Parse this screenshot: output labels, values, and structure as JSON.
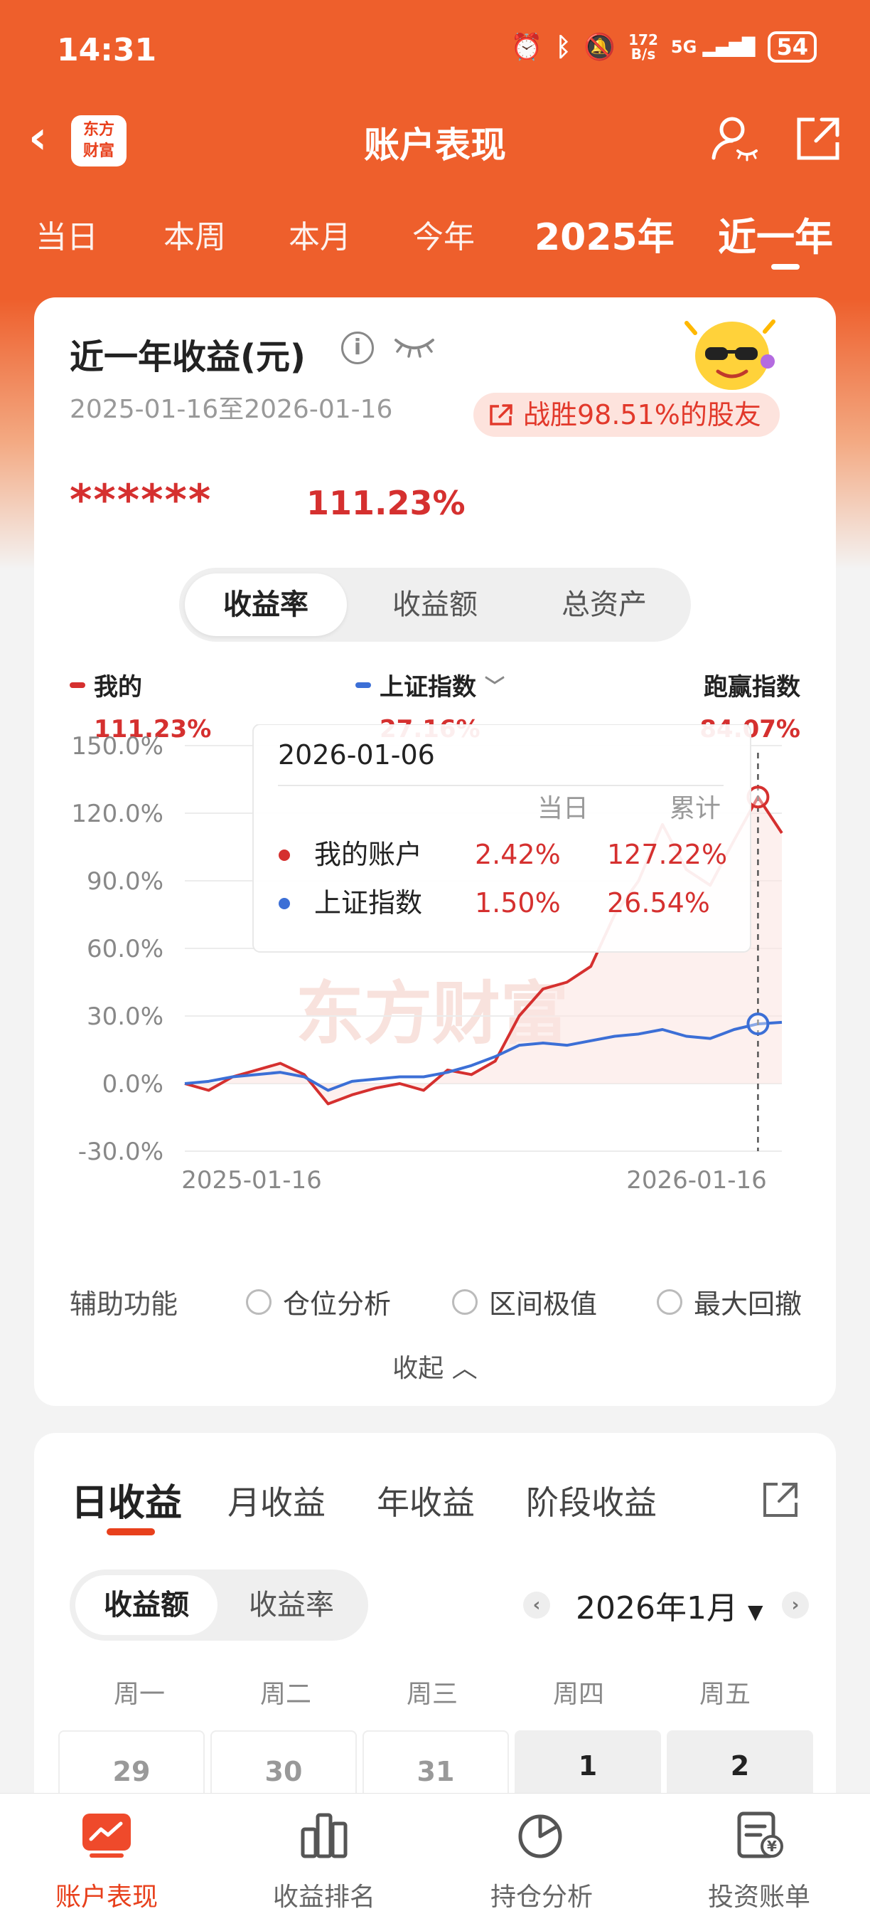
{
  "status_bar": {
    "time": "14:31",
    "net_speed_top": "172",
    "net_speed_unit": "B/s",
    "signal": "5G",
    "battery": "54"
  },
  "header": {
    "title": "账户表现",
    "brand_line1": "东方",
    "brand_line2": "财富"
  },
  "periods": [
    "当日",
    "本周",
    "本月",
    "今年",
    "2025年",
    "近一年"
  ],
  "active_period": "近一年",
  "summary": {
    "title": "近一年收益(元)",
    "date_range": "2025-01-16至2026-01-16",
    "beat_text": "战胜98.51%的股友",
    "hidden_amount": "******",
    "return_pct": "111.23%"
  },
  "metric_tabs": [
    "收益率",
    "收益额",
    "总资产"
  ],
  "active_metric": "收益率",
  "legend": {
    "mine": {
      "name": "我的",
      "value": "111.23%",
      "color": "#d5302f"
    },
    "index": {
      "name": "上证指数",
      "value": "27.16%",
      "color": "#3c6fd6"
    },
    "beat": {
      "name": "跑赢指数",
      "value": "84.07%"
    }
  },
  "tooltip": {
    "date": "2026-01-06",
    "col_daily": "当日",
    "col_cum": "累计",
    "rows": [
      {
        "name": "我的账户",
        "daily": "2.42%",
        "cum": "127.22%",
        "color": "#d5302f"
      },
      {
        "name": "上证指数",
        "daily": "1.50%",
        "cum": "26.54%",
        "color": "#3c6fd6"
      }
    ]
  },
  "chart_data": {
    "type": "line",
    "title": "",
    "xlabel": "",
    "ylabel": "",
    "ylim": [
      -30,
      150
    ],
    "y_ticks": [
      "150.0%",
      "120.0%",
      "90.0%",
      "60.0%",
      "30.0%",
      "0.0%",
      "-30.0%"
    ],
    "x_tick_labels": [
      "2025-01-16",
      "2026-01-16"
    ],
    "x": [
      "2025-01-16",
      "2025-01-31",
      "2025-02-15",
      "2025-03-02",
      "2025-03-17",
      "2025-04-01",
      "2025-04-16",
      "2025-05-01",
      "2025-05-16",
      "2025-05-31",
      "2025-06-15",
      "2025-06-30",
      "2025-07-15",
      "2025-07-30",
      "2025-08-14",
      "2025-08-29",
      "2025-09-13",
      "2025-09-28",
      "2025-10-13",
      "2025-10-28",
      "2025-11-12",
      "2025-11-27",
      "2025-12-12",
      "2025-12-27",
      "2026-01-06",
      "2026-01-16"
    ],
    "series": [
      {
        "name": "我的",
        "color": "#d5302f",
        "values": [
          0,
          -3,
          3,
          6,
          9,
          4,
          -9,
          -5,
          -2,
          0,
          -3,
          6,
          4,
          10,
          30,
          42,
          45,
          52,
          75,
          90,
          115,
          95,
          88,
          108,
          127.2,
          111.2
        ]
      },
      {
        "name": "上证指数",
        "color": "#3c6fd6",
        "values": [
          0,
          1,
          3,
          4,
          5,
          3,
          -3,
          1,
          2,
          3,
          3,
          5,
          8,
          12,
          17,
          18,
          17,
          19,
          21,
          22,
          24,
          21,
          20,
          24,
          26.5,
          27.2
        ]
      }
    ],
    "highlight_x": "2026-01-06",
    "watermark": "东方财富"
  },
  "aux": {
    "label": "辅助功能",
    "options": [
      "仓位分析",
      "区间极值",
      "最大回撤"
    ]
  },
  "collapse_label": "收起",
  "profit_tabs": [
    "日收益",
    "月收益",
    "年收益",
    "阶段收益"
  ],
  "active_profit_tab": "日收益",
  "calendar": {
    "view_tabs": [
      "收益额",
      "收益率"
    ],
    "active_view": "收益额",
    "month_label": "2026年1月",
    "weekdays": [
      "周一",
      "周二",
      "周三",
      "周四",
      "周五"
    ],
    "days": [
      "29",
      "30",
      "31",
      "1",
      "2"
    ]
  },
  "bottom_nav": [
    "账户表现",
    "收益排名",
    "持仓分析",
    "投资账单"
  ],
  "active_nav": "账户表现"
}
